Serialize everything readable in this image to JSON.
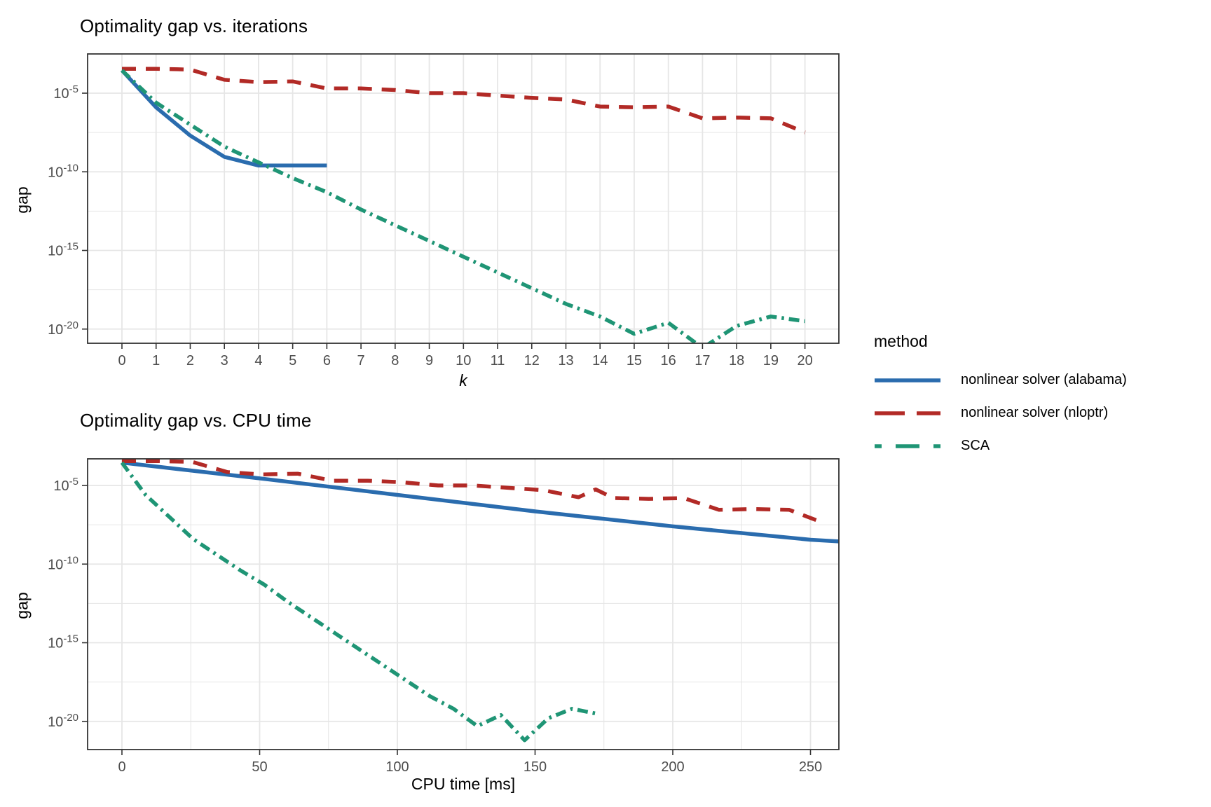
{
  "figure": {
    "background": "#ffffff",
    "panel_border_color": "#333333",
    "grid_color": "#e6e6e6",
    "tick_label_color": "#4d4d4d"
  },
  "legend": {
    "title": "method",
    "position": "right",
    "items": [
      {
        "id": "alabama",
        "label": "nonlinear solver (alabama)",
        "color": "#2a6cae",
        "dash": "solid"
      },
      {
        "id": "nloptr",
        "label": "nonlinear solver (nloptr)",
        "color": "#b22a26",
        "dash": "dashed"
      },
      {
        "id": "sca",
        "label": "SCA",
        "color": "#1f9575",
        "dash": "dashdot"
      }
    ]
  },
  "chart_data": [
    {
      "type": "line",
      "title": "Optimality gap vs. iterations",
      "xlabel": "k",
      "ylabel": "gap",
      "y_scale": "log10",
      "grid": true,
      "legend_position": "right",
      "x_ticks": [
        0,
        1,
        2,
        3,
        4,
        5,
        6,
        7,
        8,
        9,
        10,
        11,
        12,
        13,
        14,
        15,
        16,
        17,
        18,
        19,
        20
      ],
      "y_ticks_log10": [
        -5,
        -10,
        -15,
        -20
      ],
      "xlim": [
        -1,
        21
      ],
      "ylim_log10": [
        -20.9,
        -2.5
      ],
      "series": [
        {
          "id": "alabama",
          "name": "nonlinear solver (alabama)",
          "color": "#2a6cae",
          "dash": "solid",
          "x": [
            0,
            1,
            2,
            3,
            4,
            5,
            6
          ],
          "y_log10": [
            -3.55,
            -5.9,
            -7.7,
            -9.05,
            -9.6,
            -9.6,
            -9.6
          ]
        },
        {
          "id": "nloptr",
          "name": "nonlinear solver (nloptr)",
          "color": "#b22a26",
          "dash": "dashed",
          "x": [
            0,
            1,
            2,
            3,
            4,
            5,
            6,
            7,
            8,
            9,
            10,
            11,
            12,
            13,
            14,
            15,
            16,
            17,
            18,
            19,
            20
          ],
          "y_log10": [
            -3.45,
            -3.45,
            -3.5,
            -4.15,
            -4.3,
            -4.25,
            -4.7,
            -4.7,
            -4.8,
            -5.0,
            -5.0,
            -5.15,
            -5.3,
            -5.4,
            -5.85,
            -5.9,
            -5.85,
            -6.6,
            -6.55,
            -6.6,
            -7.5
          ]
        },
        {
          "id": "sca",
          "name": "SCA",
          "color": "#1f9575",
          "dash": "dashdot",
          "x": [
            0,
            1,
            2,
            3,
            4,
            5,
            6,
            7,
            8,
            9,
            10,
            11,
            12,
            13,
            14,
            15,
            16,
            17,
            18,
            19,
            20
          ],
          "y_log10": [
            -3.55,
            -5.6,
            -7.0,
            -8.4,
            -9.4,
            -10.4,
            -11.3,
            -12.4,
            -13.4,
            -14.4,
            -15.4,
            -16.4,
            -17.4,
            -18.4,
            -19.2,
            -20.3,
            -19.6,
            -21.2,
            -19.8,
            -19.2,
            -19.5
          ]
        }
      ]
    },
    {
      "type": "line",
      "title": "Optimality gap vs. CPU time",
      "xlabel": "CPU time [ms]",
      "ylabel": "gap",
      "y_scale": "log10",
      "grid": true,
      "legend_position": "right",
      "x_ticks": [
        0,
        50,
        100,
        150,
        200,
        250
      ],
      "y_ticks_log10": [
        -5,
        -10,
        -15,
        -20
      ],
      "xlim": [
        -12,
        260
      ],
      "ylim_log10": [
        -21.8,
        -3.3
      ],
      "series": [
        {
          "id": "alabama",
          "name": "nonlinear solver (alabama)",
          "color": "#2a6cae",
          "dash": "solid",
          "x": [
            0,
            50,
            100,
            150,
            200,
            250,
            264
          ],
          "y_log10": [
            -3.55,
            -4.55,
            -5.6,
            -6.65,
            -7.6,
            -8.45,
            -8.6
          ]
        },
        {
          "id": "nloptr",
          "name": "nonlinear solver (nloptr)",
          "color": "#b22a26",
          "dash": "dashed",
          "x": [
            0,
            12.8,
            25.5,
            38.3,
            51,
            63.8,
            76.5,
            89.3,
            102,
            114.8,
            127.5,
            140.3,
            153,
            165.8,
            172,
            178.5,
            191.3,
            204,
            216.8,
            229.5,
            242.3,
            255
          ],
          "y_log10": [
            -3.45,
            -3.45,
            -3.5,
            -4.15,
            -4.3,
            -4.25,
            -4.7,
            -4.7,
            -4.8,
            -5.0,
            -5.0,
            -5.15,
            -5.3,
            -5.75,
            -5.25,
            -5.8,
            -5.85,
            -5.8,
            -6.55,
            -6.5,
            -6.55,
            -7.4
          ]
        },
        {
          "id": "sca",
          "name": "SCA",
          "color": "#1f9575",
          "dash": "dashdot",
          "x": [
            0,
            8.6,
            17.2,
            25.8,
            34.4,
            43,
            51.6,
            60.2,
            68.8,
            77.4,
            86,
            94.6,
            103.2,
            111.8,
            120.4,
            129,
            137.6,
            146.2,
            154.8,
            163.4,
            172
          ],
          "y_log10": [
            -3.55,
            -5.6,
            -7.0,
            -8.4,
            -9.4,
            -10.4,
            -11.3,
            -12.4,
            -13.4,
            -14.4,
            -15.4,
            -16.4,
            -17.4,
            -18.4,
            -19.2,
            -20.3,
            -19.6,
            -21.2,
            -19.8,
            -19.2,
            -19.5
          ]
        }
      ]
    }
  ]
}
